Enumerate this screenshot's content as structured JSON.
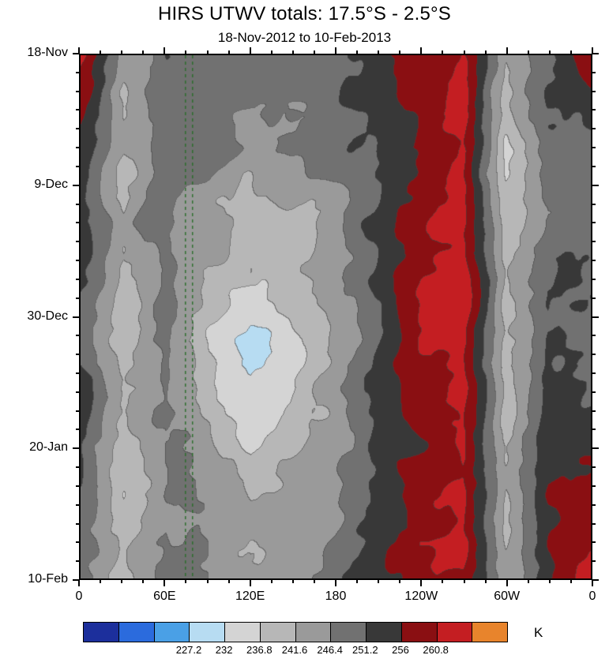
{
  "title": "HIRS UTWV totals: 17.5°S - 2.5°S",
  "subtitle": "18-Nov-2012 to 10-Feb-2013",
  "axes": {
    "x_range_deg": [
      0,
      360
    ],
    "x_ticks": [
      {
        "lon": 0,
        "label": "0"
      },
      {
        "lon": 60,
        "label": "60E"
      },
      {
        "lon": 120,
        "label": "120E"
      },
      {
        "lon": 180,
        "label": "180"
      },
      {
        "lon": 240,
        "label": "120W"
      },
      {
        "lon": 300,
        "label": "60W"
      },
      {
        "lon": 360,
        "label": "0"
      }
    ],
    "x_minor_step_deg": 15,
    "y_range_days": [
      0,
      84
    ],
    "y_ticks": [
      {
        "day": 0,
        "label": "18-Nov"
      },
      {
        "day": 21,
        "label": "9-Dec"
      },
      {
        "day": 42,
        "label": "30-Dec"
      },
      {
        "day": 63,
        "label": "20-Jan"
      },
      {
        "day": 84,
        "label": "10-Feb"
      }
    ],
    "y_minor_step_days": 3
  },
  "colorbar": {
    "unit": "K",
    "labels": [
      "227.2",
      "232",
      "236.8",
      "241.6",
      "246.4",
      "251.2",
      "256",
      "260.8"
    ],
    "first_labeled_boundary": 3
  },
  "chart_data": {
    "type": "heatmap",
    "title": "HIRS UTWV totals: 17.5°S - 2.5°S",
    "subtitle": "18-Nov-2012 to 10-Feb-2013",
    "xlabel": "longitude (0–360, wrapping 0 → 60E → 120E → 180 → 120W → 60W → 0)",
    "ylabel": "date (18-Nov-2012 at top to 10-Feb-2013 at bottom)",
    "units": "K",
    "x_lons_deg": [
      0,
      30,
      60,
      90,
      120,
      150,
      180,
      210,
      240,
      270,
      300,
      330,
      360
    ],
    "y_rows_note": "12 rows evenly spaced in time from 18-Nov-2012 (row 0) to 10-Feb-2013 (row 11)",
    "values_K": [
      [
        263,
        242,
        250,
        247,
        246,
        245,
        247,
        252,
        256,
        262,
        241,
        252,
        262
      ],
      [
        256,
        240,
        249,
        246,
        244,
        246,
        248,
        253,
        258,
        263,
        239,
        251,
        254
      ],
      [
        250,
        241,
        248,
        245,
        243,
        247,
        249,
        254,
        258,
        264,
        238,
        251,
        250
      ],
      [
        250,
        238,
        247,
        244,
        241,
        245,
        248,
        252,
        258,
        263,
        240,
        250,
        250
      ],
      [
        251,
        240,
        248,
        243,
        240,
        244,
        247,
        253,
        257,
        262,
        239,
        249,
        251
      ],
      [
        250,
        239,
        247,
        241,
        237,
        242,
        246,
        252,
        258,
        263,
        238,
        250,
        250
      ],
      [
        249,
        240,
        246,
        238,
        234,
        240,
        245,
        251,
        257,
        262,
        240,
        251,
        249
      ],
      [
        250,
        238,
        247,
        240,
        233,
        237,
        244,
        252,
        258,
        263,
        239,
        252,
        250
      ],
      [
        251,
        240,
        248,
        242,
        235,
        238,
        242,
        251,
        257,
        262,
        238,
        253,
        252
      ],
      [
        250,
        239,
        247,
        243,
        237,
        240,
        243,
        252,
        258,
        261,
        240,
        255,
        258
      ],
      [
        249,
        240,
        248,
        244,
        240,
        243,
        246,
        251,
        257,
        260,
        239,
        257,
        261
      ],
      [
        250,
        241,
        247,
        245,
        242,
        244,
        247,
        252,
        256,
        259,
        241,
        256,
        263
      ]
    ],
    "levels_K": [
      217.6,
      222.4,
      227.2,
      232,
      236.8,
      241.6,
      246.4,
      251.2,
      256,
      260.8,
      265.6
    ],
    "palette": [
      "#1c2f9c",
      "#2b6bdd",
      "#4aa0e6",
      "#b7dcf2",
      "#d4d4d4",
      "#b7b7b7",
      "#9a9a9a",
      "#717171",
      "#383838",
      "#8a0f12",
      "#c41e22",
      "#e8842c"
    ],
    "legend_position": "bottom labelbar",
    "grid": "off",
    "marker_lines": {
      "style": "dashed",
      "color": "#2a6e2a",
      "lons_deg": [
        74,
        79
      ]
    }
  }
}
